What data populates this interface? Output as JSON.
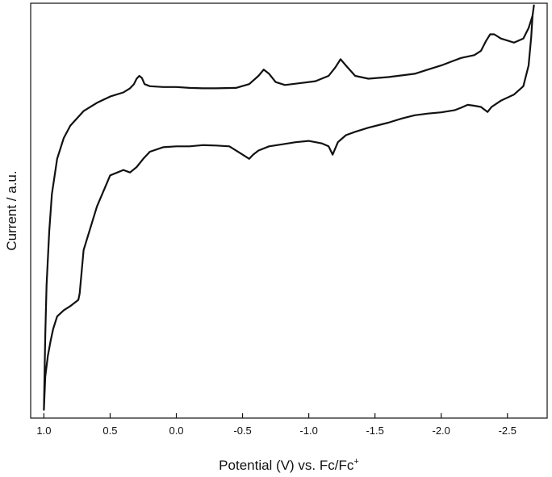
{
  "chart_data": {
    "type": "line",
    "xlabel": "Potential (V) vs. Fc/Fc",
    "xlabel_superscript": "+",
    "ylabel": "Current / a.u.",
    "x_reversed": true,
    "xlim": [
      1.1,
      -2.8
    ],
    "ylim": [
      0,
      100
    ],
    "y_tick_labels_shown": false,
    "grid": false,
    "x_ticks": [
      {
        "value": 1.0,
        "label": "1.0"
      },
      {
        "value": 0.5,
        "label": "0.5"
      },
      {
        "value": 0.0,
        "label": "0.0"
      },
      {
        "value": -0.5,
        "label": "-0.5"
      },
      {
        "value": -1.0,
        "label": "-1.0"
      },
      {
        "value": -1.5,
        "label": "-1.5"
      },
      {
        "value": -2.0,
        "label": "-2.0"
      },
      {
        "value": -2.5,
        "label": "-2.5"
      }
    ],
    "series": [
      {
        "color": "#111111",
        "x": [
          1.0,
          0.99,
          0.98,
          0.96,
          0.94,
          0.9,
          0.85,
          0.8,
          0.7,
          0.6,
          0.5,
          0.4,
          0.35,
          0.32,
          0.3,
          0.28,
          0.26,
          0.24,
          0.2,
          0.1,
          0.0,
          -0.1,
          -0.2,
          -0.3,
          -0.45,
          -0.55,
          -0.62,
          -0.66,
          -0.7,
          -0.75,
          -0.82,
          -0.95,
          -1.05,
          -1.15,
          -1.2,
          -1.24,
          -1.28,
          -1.35,
          -1.45,
          -1.6,
          -1.8,
          -1.9,
          -2.0,
          -2.1,
          -2.15,
          -2.25,
          -2.3,
          -2.34,
          -2.37,
          -2.4,
          -2.45,
          -2.55,
          -2.62,
          -2.66,
          -2.69,
          -2.7,
          -2.69,
          -2.68,
          -2.66,
          -2.62,
          -2.55,
          -2.45,
          -2.38,
          -2.35,
          -2.3,
          -2.25,
          -2.2,
          -2.15,
          -2.1,
          -2.0,
          -1.9,
          -1.8,
          -1.7,
          -1.6,
          -1.45,
          -1.35,
          -1.28,
          -1.22,
          -1.18,
          -1.15,
          -1.1,
          -1.0,
          -0.9,
          -0.8,
          -0.7,
          -0.62,
          -0.58,
          -0.55,
          -0.5,
          -0.4,
          -0.3,
          -0.2,
          -0.1,
          0.0,
          0.1,
          0.2,
          0.25,
          0.3,
          0.35,
          0.4,
          0.5,
          0.6,
          0.7,
          0.73,
          0.74,
          0.76,
          0.78,
          0.8,
          0.85,
          0.9,
          0.93,
          0.95,
          0.97,
          0.99,
          1.0
        ],
        "y": [
          2.0,
          20.0,
          32.0,
          45.0,
          54.0,
          62.5,
          67.5,
          70.5,
          74.0,
          76.0,
          77.5,
          78.5,
          79.5,
          80.5,
          81.8,
          82.5,
          82.0,
          80.5,
          80.0,
          79.8,
          79.8,
          79.6,
          79.5,
          79.5,
          79.6,
          80.5,
          82.5,
          84.0,
          83.0,
          81.0,
          80.3,
          80.8,
          81.2,
          82.5,
          84.5,
          86.5,
          85.0,
          82.5,
          81.8,
          82.2,
          83.0,
          84.0,
          85.0,
          86.2,
          86.8,
          87.5,
          88.5,
          91.0,
          92.5,
          92.5,
          91.5,
          90.5,
          91.5,
          94.0,
          97.0,
          99.5,
          97.0,
          92.0,
          85.0,
          80.0,
          78.0,
          76.5,
          75.0,
          73.8,
          75.0,
          75.3,
          75.5,
          74.8,
          74.2,
          73.7,
          73.4,
          73.0,
          72.2,
          71.2,
          70.0,
          69.0,
          68.2,
          66.5,
          63.5,
          65.5,
          66.2,
          66.8,
          66.5,
          66.0,
          65.5,
          64.5,
          63.5,
          62.5,
          63.5,
          65.5,
          65.7,
          65.8,
          65.5,
          65.5,
          65.3,
          64.2,
          62.5,
          60.5,
          59.2,
          59.8,
          58.5,
          51.0,
          40.5,
          30.0,
          28.5,
          28.0,
          27.5,
          27.0,
          26.0,
          24.5,
          21.5,
          18.5,
          15.0,
          10.0,
          2.0
        ]
      }
    ]
  }
}
